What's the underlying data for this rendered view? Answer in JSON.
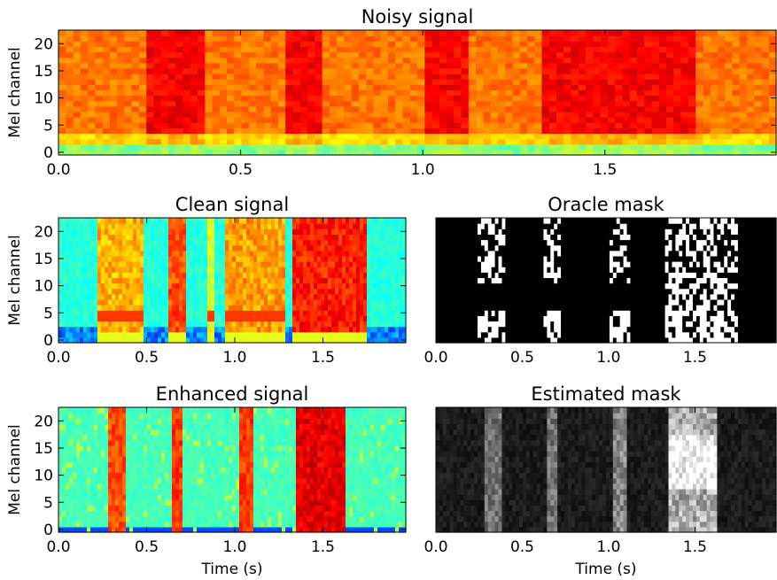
{
  "chart_data": [
    {
      "id": "noisy",
      "type": "heatmap",
      "title": "Noisy signal",
      "xlabel": "",
      "ylabel": "Mel channel",
      "colormap": "jet",
      "xlim": [
        0,
        1.97
      ],
      "ylim": [
        -0.5,
        22.5
      ],
      "xticks": [
        0.0,
        0.5,
        1.0,
        1.5
      ],
      "xticklabels": [
        "0.0",
        "0.5",
        "1.0",
        "1.5"
      ],
      "yticks": [
        0,
        5,
        10,
        15,
        20
      ],
      "yticklabels": [
        "0",
        "5",
        "10",
        "15",
        "20"
      ],
      "grid": false,
      "description_values": "normalized energy 0-1; broadband noise with speech segments at roughly 0.25-0.40s, 0.62-0.72s, 1.00-1.12s, 1.33-1.75s",
      "segments": [
        {
          "t0": 0.25,
          "t1": 0.4,
          "level": 0.9
        },
        {
          "t0": 0.62,
          "t1": 0.72,
          "level": 0.88
        },
        {
          "t0": 1.0,
          "t1": 1.12,
          "level": 0.9
        },
        {
          "t0": 1.33,
          "t1": 1.75,
          "level": 0.95
        }
      ]
    },
    {
      "id": "clean",
      "type": "heatmap",
      "title": "Clean signal",
      "xlabel": "",
      "ylabel": "Mel channel",
      "colormap": "jet",
      "xlim": [
        0,
        1.97
      ],
      "ylim": [
        -0.5,
        22.5
      ],
      "xticks": [
        0.0,
        0.5,
        1.0,
        1.5
      ],
      "xticklabels": [
        "0.0",
        "0.5",
        "1.0",
        "1.5"
      ],
      "yticks": [
        0,
        5,
        10,
        15,
        20
      ],
      "yticklabels": [
        "0",
        "5",
        "10",
        "15",
        "20"
      ],
      "grid": false,
      "segments": [
        {
          "t0": 0.22,
          "t1": 0.48,
          "level": 0.7
        },
        {
          "t0": 0.62,
          "t1": 0.72,
          "level": 0.8
        },
        {
          "t0": 0.85,
          "t1": 0.88,
          "level": 0.6
        },
        {
          "t0": 0.95,
          "t1": 1.28,
          "level": 0.72
        },
        {
          "t0": 1.33,
          "t1": 1.75,
          "level": 0.85
        }
      ]
    },
    {
      "id": "oracle",
      "type": "heatmap",
      "title": "Oracle mask",
      "xlabel": "",
      "ylabel": "",
      "colormap": "gray",
      "binary": true,
      "xlim": [
        0,
        1.97
      ],
      "ylim": [
        -0.5,
        22.5
      ],
      "xticks": [
        0.0,
        0.5,
        1.0,
        1.5
      ],
      "xticklabels": [
        "0.0",
        "0.5",
        "1.0",
        "1.5"
      ],
      "yticks": [],
      "grid": false,
      "segments": [
        {
          "t0": 0.25,
          "t1": 0.4,
          "level": 0.8
        },
        {
          "t0": 0.62,
          "t1": 0.72,
          "level": 0.8
        },
        {
          "t0": 1.0,
          "t1": 1.12,
          "level": 0.8
        },
        {
          "t0": 1.33,
          "t1": 1.75,
          "level": 0.9
        }
      ]
    },
    {
      "id": "enhanced",
      "type": "heatmap",
      "title": "Enhanced signal",
      "xlabel": "Time (s)",
      "ylabel": "Mel channel",
      "colormap": "jet",
      "xlim": [
        0,
        1.97
      ],
      "ylim": [
        -0.5,
        22.5
      ],
      "xticks": [
        0.0,
        0.5,
        1.0,
        1.5
      ],
      "xticklabels": [
        "0.0",
        "0.5",
        "1.0",
        "1.5"
      ],
      "yticks": [
        0,
        5,
        10,
        15,
        20
      ],
      "yticklabels": [
        "0",
        "5",
        "10",
        "15",
        "20"
      ],
      "grid": false,
      "segments": [
        {
          "t0": 0.28,
          "t1": 0.38,
          "level": 0.8
        },
        {
          "t0": 0.64,
          "t1": 0.71,
          "level": 0.82
        },
        {
          "t0": 1.02,
          "t1": 1.11,
          "level": 0.82
        },
        {
          "t0": 1.34,
          "t1": 1.62,
          "level": 0.9
        }
      ]
    },
    {
      "id": "estimated",
      "type": "heatmap",
      "title": "Estimated mask",
      "xlabel": "Time (s)",
      "ylabel": "",
      "colormap": "gray",
      "xlim": [
        0,
        1.97
      ],
      "ylim": [
        -0.5,
        22.5
      ],
      "xticks": [
        0.0,
        0.5,
        1.0,
        1.5
      ],
      "xticklabels": [
        "0.0",
        "0.5",
        "1.0",
        "1.5"
      ],
      "yticks": [],
      "grid": false,
      "segments": [
        {
          "t0": 0.28,
          "t1": 0.38,
          "level": 0.6
        },
        {
          "t0": 0.64,
          "t1": 0.71,
          "level": 0.6
        },
        {
          "t0": 1.02,
          "t1": 1.11,
          "level": 0.7
        },
        {
          "t0": 1.35,
          "t1": 1.62,
          "level": 0.9
        }
      ]
    }
  ]
}
